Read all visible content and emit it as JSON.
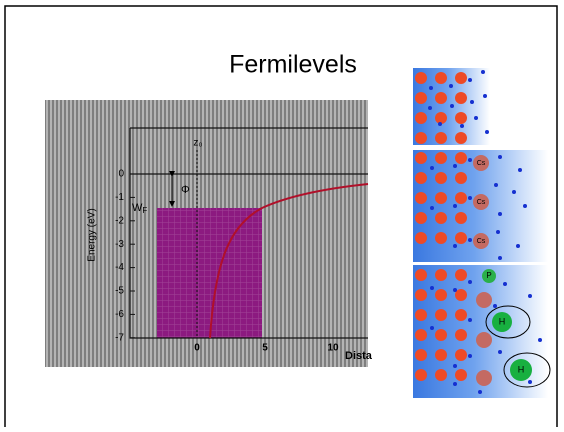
{
  "slide": {
    "title": "Fermilevels",
    "figure": {
      "y_axis_label": "Energy (eV)",
      "y_ticks": [
        "0",
        "-1",
        "-2",
        "-3",
        "-4",
        "-5",
        "-6",
        "-7"
      ],
      "x_ticks": [
        "0",
        "5",
        "10"
      ],
      "x_axis_label": "Dista",
      "z_label": "z₀",
      "work_function": {
        "main": "W",
        "sub": "F"
      },
      "phi": "Φ"
    },
    "panels": {
      "cs": [
        "Cs",
        "Cs",
        "Cs"
      ],
      "p": "P",
      "h": [
        "H",
        "H"
      ]
    }
  }
}
